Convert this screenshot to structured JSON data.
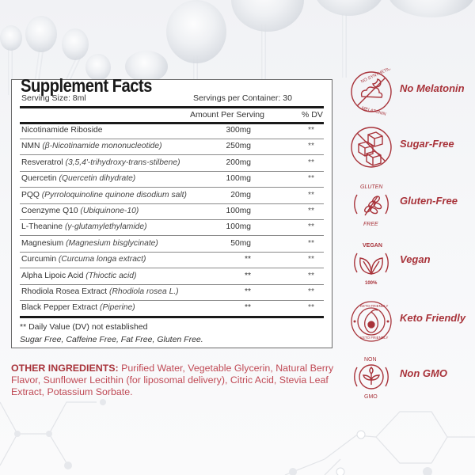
{
  "supplement_facts": {
    "title": "Supplement Facts",
    "serving_size": "Serving Size: 8ml",
    "servings_per_container": "Servings per Container: 30",
    "header_amount": "Amount Per Serving",
    "header_dv": "% DV",
    "rows": [
      {
        "name": "Nicotinamide Riboside",
        "detail": "",
        "amount": "300mg",
        "dv": "**"
      },
      {
        "name": "NMN ",
        "detail": "(β-Nicotinamide mononucleotide)",
        "amount": "250mg",
        "dv": "**"
      },
      {
        "name": "Resveratrol ",
        "detail": "(3,5,4'-trihydroxy-trans-stilbene)",
        "amount": "200mg",
        "dv": "**"
      },
      {
        "name": "Quercetin ",
        "detail": "(Quercetin dihydrate)",
        "amount": "100mg",
        "dv": "**"
      },
      {
        "name": "PQQ ",
        "detail": "(Pyrroloquinoline quinone disodium salt)",
        "amount": "20mg",
        "dv": "**"
      },
      {
        "name": "Coenzyme Q10 ",
        "detail": "(Ubiquinone-10)",
        "amount": "100mg",
        "dv": "**"
      },
      {
        "name": "L-Theanine ",
        "detail": "(γ-glutamylethylamide)",
        "amount": "100mg",
        "dv": "**"
      },
      {
        "name": "Magnesium ",
        "detail": "(Magnesium bisglycinate)",
        "amount": "50mg",
        "dv": "**"
      },
      {
        "name": "Curcumin ",
        "detail": "(Curcuma longa extract)",
        "amount": "**",
        "dv": "**"
      },
      {
        "name": "Alpha Lipoic Acid ",
        "detail": "(Thioctic acid)",
        "amount": "**",
        "dv": "**"
      },
      {
        "name": "Rhodiola Rosea Extract ",
        "detail": "(Rhodiola rosea L.)",
        "amount": "**",
        "dv": "**"
      },
      {
        "name": "Black Pepper Extract ",
        "detail": "(Piperine)",
        "amount": "**",
        "dv": "**"
      }
    ],
    "footnote": "** Daily Value (DV) not established",
    "free_from": "Sugar Free, Caffeine Free, Fat Free, Gluten Free."
  },
  "other_ingredients": {
    "label": "OTHER INGREDIENTS:",
    "text": " Purified Water, Vegetable Glycerin, Natural Berry Flavor, Sunflower Lecithin (for liposomal delivery), Citric Acid, Stevia Leaf Extract, Potassium Sorbate."
  },
  "badges": [
    {
      "icon": "no-melatonin-icon",
      "label": "No Melatonin",
      "ring_top": "NO SYNTHETIC",
      "ring_bottom": "MELATONIN"
    },
    {
      "icon": "sugar-free-icon",
      "label": "Sugar-Free"
    },
    {
      "icon": "gluten-free-icon",
      "label": "Gluten-Free",
      "ring_top": "GLUTEN",
      "ring_bottom": "FREE"
    },
    {
      "icon": "vegan-icon",
      "label": "Vegan",
      "ring_top": "VEGAN",
      "ring_bottom": "100%"
    },
    {
      "icon": "keto-friendly-icon",
      "label": "Keto Friendly",
      "ring_top": "KETO FRIENDLY",
      "ring_bottom": "KETO FRIENDLY"
    },
    {
      "icon": "non-gmo-icon",
      "label": "Non GMO",
      "ring_top": "NON",
      "ring_bottom": "GMO"
    }
  ],
  "colors": {
    "accent": "#a8333a",
    "text": "#333333",
    "title": "#1a1a1a"
  }
}
